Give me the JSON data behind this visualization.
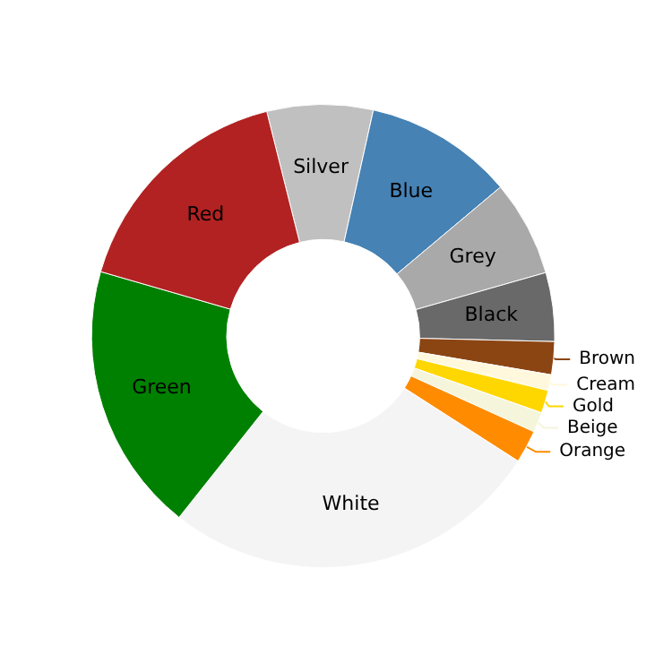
{
  "chart_data": {
    "type": "donut",
    "categories": [
      "Silver",
      "Blue",
      "Grey",
      "Black",
      "Brown",
      "Cream",
      "Gold",
      "Beige",
      "Orange",
      "White",
      "Green",
      "Red"
    ],
    "values": [
      7.4,
      10.4,
      6.7,
      4.8,
      2.3,
      1.1,
      1.6,
      1.4,
      2.3,
      26.6,
      18.8,
      16.6
    ],
    "colors": [
      "#c0c0c0",
      "#4682b4",
      "#a9a9a9",
      "#696969",
      "#8b4513",
      "#fff8dc",
      "#ffd700",
      "#f5f5dc",
      "#ff8c00",
      "#f4f4f4",
      "#008000",
      "#b22222"
    ]
  }
}
